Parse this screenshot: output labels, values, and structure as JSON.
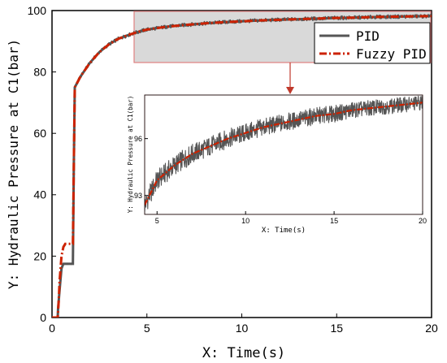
{
  "chart_data": [
    {
      "type": "line",
      "xlabel": "X: Time(s)",
      "ylabel": "Y: Hydraulic Pressure at C1(bar)",
      "xlim": [
        0,
        20
      ],
      "ylim": [
        0,
        100
      ],
      "xticks": [
        0,
        5,
        10,
        15,
        20
      ],
      "yticks": [
        0,
        20,
        40,
        60,
        80,
        100
      ],
      "legend": {
        "placement": "top-right"
      },
      "series": [
        {
          "name": "PID",
          "color": "#555555",
          "x": [
            0.0,
            0.3,
            0.32,
            0.4,
            0.5,
            0.6,
            0.8,
            1.0,
            1.1,
            1.15,
            1.2,
            1.5,
            2.0,
            2.5,
            3.0,
            3.5,
            4.0,
            4.5,
            5.0,
            6.0,
            7.0,
            8.0,
            9.0,
            10.0,
            11.0,
            12.0,
            13.0,
            14.0,
            15.0,
            16.0,
            17.0,
            18.0,
            19.0,
            20.0
          ],
          "y": [
            0.0,
            0.0,
            3.0,
            9.0,
            16.0,
            17.5,
            17.5,
            17.5,
            17.5,
            50.0,
            75.0,
            78.5,
            83.0,
            86.5,
            89.0,
            90.8,
            92.0,
            93.0,
            93.8,
            94.7,
            95.3,
            95.8,
            96.2,
            96.5,
            96.8,
            97.0,
            97.2,
            97.4,
            97.6,
            97.7,
            97.9,
            98.0,
            98.1,
            98.2
          ]
        },
        {
          "name": "Fuzzy PID",
          "color": "#cc2200",
          "x": [
            0.0,
            0.3,
            0.35,
            0.4,
            0.5,
            0.6,
            0.7,
            0.8,
            1.0,
            1.1,
            1.15,
            1.2,
            1.5,
            2.0,
            2.5,
            3.0,
            3.5,
            4.0,
            4.5,
            5.0,
            6.0,
            7.0,
            8.0,
            9.0,
            10.0,
            11.0,
            12.0,
            13.0,
            14.0,
            15.0,
            16.0,
            17.0,
            18.0,
            19.0,
            20.0
          ],
          "y": [
            0.0,
            0.0,
            5.0,
            12.0,
            20.0,
            23.0,
            24.0,
            24.0,
            24.0,
            24.0,
            50.0,
            75.0,
            78.5,
            83.0,
            86.5,
            89.0,
            90.8,
            92.0,
            93.0,
            93.8,
            94.7,
            95.3,
            95.8,
            96.2,
            96.5,
            96.8,
            97.0,
            97.2,
            97.4,
            97.6,
            97.7,
            97.9,
            98.0,
            98.1,
            98.2
          ]
        }
      ]
    },
    {
      "type": "line",
      "xlabel": "X: Time(s)",
      "ylabel": "Y: Hydraulic Pressure at C1(bar)",
      "xlim": [
        4.3,
        20
      ],
      "ylim": [
        92.0,
        98.3
      ],
      "xticks": [
        5,
        10,
        15,
        20
      ],
      "yticks": [
        93,
        96
      ],
      "series": [
        {
          "name": "PID",
          "color": "#555555",
          "x": [
            4.3,
            5.0,
            6.0,
            7.0,
            8.0,
            9.0,
            10.0,
            11.0,
            12.0,
            13.0,
            14.0,
            15.0,
            16.0,
            17.0,
            18.0,
            19.0,
            20.0
          ],
          "y": [
            92.5,
            93.8,
            94.6,
            95.2,
            95.6,
            96.0,
            96.3,
            96.6,
            96.8,
            97.0,
            97.2,
            97.3,
            97.5,
            97.6,
            97.7,
            97.8,
            97.9
          ]
        },
        {
          "name": "Fuzzy PID",
          "color": "#cc2200",
          "x": [
            4.3,
            5.0,
            6.0,
            7.0,
            8.0,
            9.0,
            10.0,
            11.0,
            12.0,
            13.0,
            14.0,
            15.0,
            16.0,
            17.0,
            18.0,
            19.0,
            20.0
          ],
          "y": [
            92.5,
            93.8,
            94.6,
            95.2,
            95.6,
            96.0,
            96.3,
            96.6,
            96.8,
            97.0,
            97.2,
            97.3,
            97.5,
            97.6,
            97.7,
            97.8,
            97.9
          ]
        }
      ]
    }
  ]
}
